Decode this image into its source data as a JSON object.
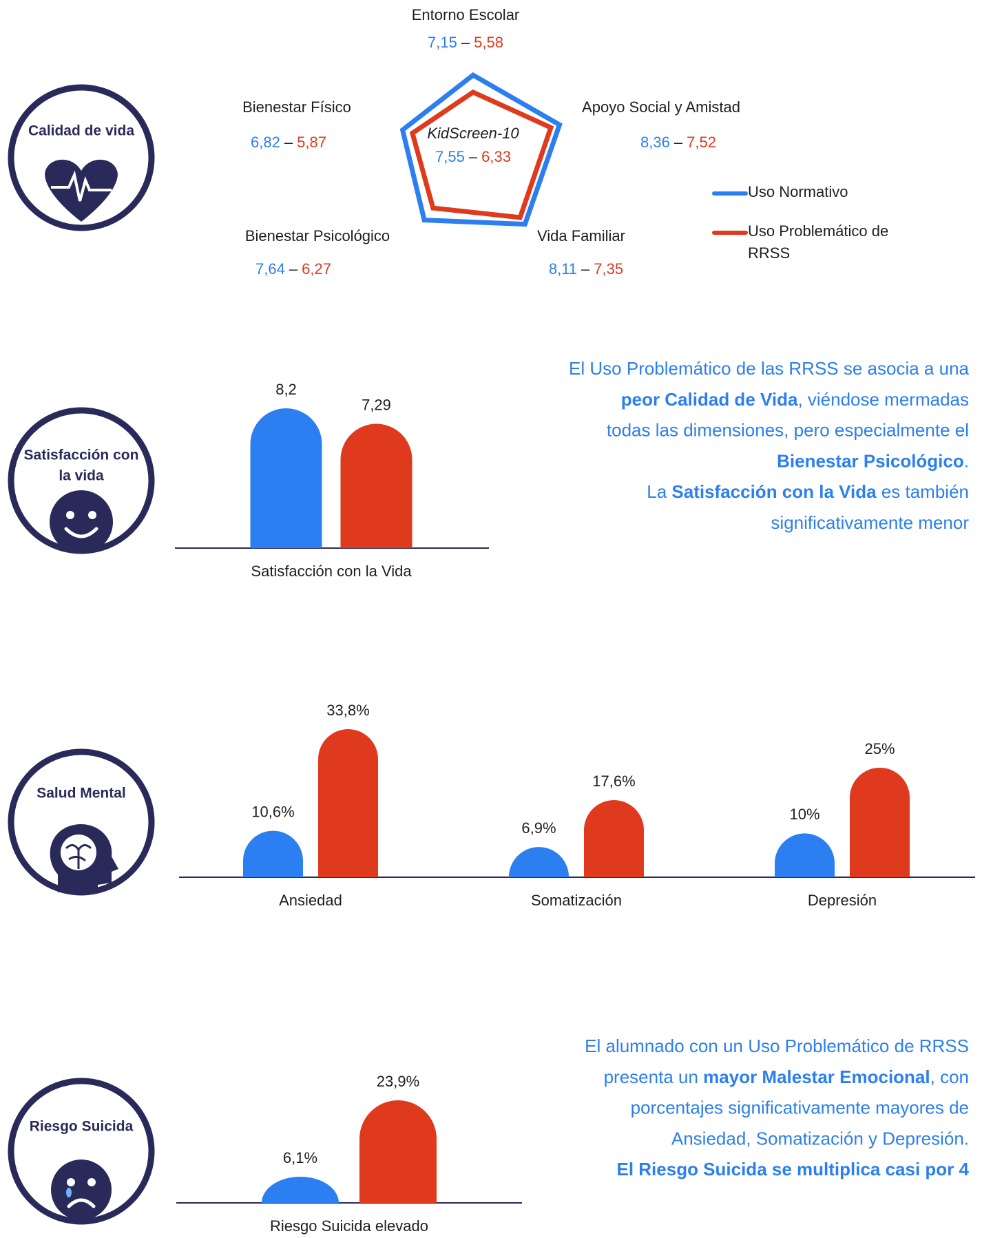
{
  "sections": [
    {
      "label": [
        "Calidad de vida"
      ]
    },
    {
      "label": [
        "Satisfacción con",
        "la vida"
      ]
    },
    {
      "label": [
        "Salud Mental"
      ]
    },
    {
      "label": [
        "Riesgo Suicida"
      ]
    }
  ],
  "chart_data": [
    {
      "type": "radar",
      "separator": "–",
      "categories": [
        "Entorno Escolar",
        "Apoyo Social y Amistad",
        "Vida Familiar",
        "Bienestar Psicológico",
        "Bienestar Físico"
      ],
      "center_label": "KidScreen-10",
      "center_values": [
        7.55,
        6.33
      ],
      "center_value_labels": [
        "7,55",
        "6,33"
      ],
      "legend": "right",
      "series": [
        {
          "name": "Uso Normativo",
          "color": "#2b7ff0",
          "values": [
            7.15,
            8.36,
            8.11,
            7.64,
            6.82
          ],
          "value_labels": [
            "7,15",
            "8,36",
            "8,11",
            "7,64",
            "6,82"
          ]
        },
        {
          "name": "Uso Problemático de RRSS",
          "color": "#e03a1e",
          "values": [
            5.58,
            7.52,
            7.35,
            6.27,
            5.87
          ],
          "value_labels": [
            "5,58",
            "7,52",
            "7,35",
            "6,27",
            "5,87"
          ]
        }
      ]
    },
    {
      "type": "bar",
      "categories": [
        "Satisfacción con la Vida"
      ],
      "series": [
        {
          "color": "#2b7ff0",
          "values": [
            8.2
          ],
          "value_labels": [
            "8,2"
          ]
        },
        {
          "color": "#e03a1e",
          "values": [
            7.29
          ],
          "value_labels": [
            "7,29"
          ]
        }
      ]
    },
    {
      "type": "bar",
      "categories": [
        "Ansiedad",
        "Somatización",
        "Depresión"
      ],
      "series": [
        {
          "color": "#2b7ff0",
          "values": [
            10.6,
            6.9,
            10
          ],
          "value_labels": [
            "10,6%",
            "6,9%",
            "10%"
          ]
        },
        {
          "color": "#e03a1e",
          "values": [
            33.8,
            17.6,
            25
          ],
          "value_labels": [
            "33,8%",
            "17,6%",
            "25%"
          ]
        }
      ]
    },
    {
      "type": "bar",
      "categories": [
        "Riesgo Suicida elevado"
      ],
      "series": [
        {
          "color": "#2b7ff0",
          "values": [
            6.1
          ],
          "value_labels": [
            "6,1%"
          ]
        },
        {
          "color": "#e03a1e",
          "values": [
            23.9
          ],
          "value_labels": [
            "23,9%"
          ]
        }
      ]
    }
  ],
  "notes": [
    {
      "color": "#2b7ff0",
      "lines": [
        [
          {
            "text": "El Uso Problemático de las RRSS se asocia a una"
          }
        ],
        [
          {
            "text": "peor Calidad de Vida",
            "bold": true
          },
          {
            "text": ", viéndose mermadas"
          }
        ],
        [
          {
            "text": "todas las dimensiones, pero especialmente el"
          }
        ],
        [
          {
            "text": "Bienestar Psicológico",
            "bold": true
          },
          {
            "text": "."
          }
        ],
        [
          {
            "text": "La "
          },
          {
            "text": "Satisfacción con la Vida",
            "bold": true
          },
          {
            "text": " es también"
          }
        ],
        [
          {
            "text": "significativamente menor"
          }
        ]
      ]
    },
    {
      "color": "#2b7ff0",
      "lines": [
        [
          {
            "text": "El alumnado con un Uso Problemático de RRSS"
          }
        ],
        [
          {
            "text": "presenta un "
          },
          {
            "text": "mayor Malestar Emocional",
            "bold": true
          },
          {
            "text": ", con"
          }
        ],
        [
          {
            "text": "porcentajes significativamente mayores de"
          }
        ],
        [
          {
            "text": "Ansiedad, Somatización y Depresión."
          }
        ],
        [
          {
            "text": "El Riesgo Suicida se multiplica casi por 4",
            "bold": true
          }
        ]
      ]
    }
  ]
}
